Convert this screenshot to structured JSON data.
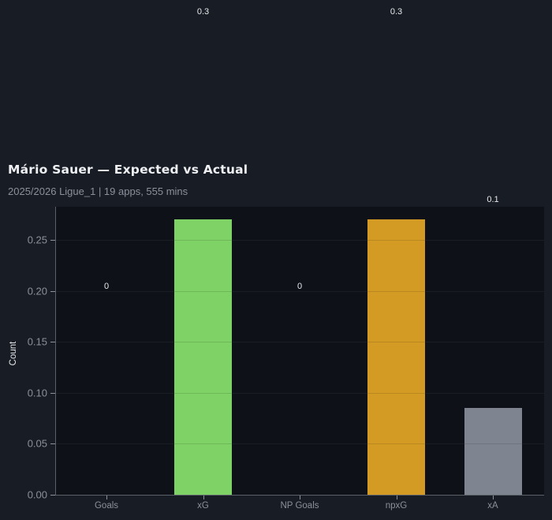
{
  "header": {
    "title": "Mário Sauer — Expected vs Actual",
    "subtitle": "2025/2026 Ligue_1 | 19 apps, 555 mins"
  },
  "colors": {
    "background": "#181c24",
    "plot_background": "#0e1118",
    "xG": "#7ed266",
    "npxG": "#d39b24",
    "xA": "#7f8590",
    "axis": "#5a5f68",
    "tick_text": "#8b909a"
  },
  "chart_data": {
    "type": "bar",
    "title": "Mário Sauer — Expected vs Actual",
    "subtitle": "2025/2026 Ligue_1 | 19 apps, 555 mins",
    "xlabel": "",
    "ylabel": "Count",
    "categories": [
      "Goals",
      "xG",
      "NP Goals",
      "npxG",
      "xA"
    ],
    "values": [
      0,
      0.27,
      0,
      0.27,
      0.085
    ],
    "value_labels": [
      "0",
      "0.3",
      "0",
      "0.3",
      "0.1"
    ],
    "bar_colors": [
      null,
      "#7ed266",
      null,
      "#d39b24",
      "#7f8590"
    ],
    "ylim": [
      0,
      0.283
    ],
    "yticks": [
      "0.00",
      "0.05",
      "0.10",
      "0.15",
      "0.20",
      "0.25"
    ],
    "grid": true,
    "legend": null
  }
}
